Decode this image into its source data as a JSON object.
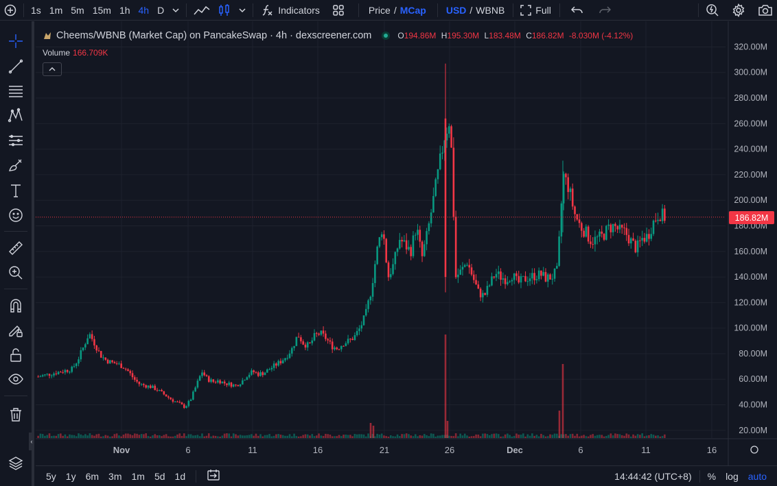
{
  "toolbar": {
    "intervals": [
      "1s",
      "1m",
      "5m",
      "15m",
      "1h",
      "4h",
      "D"
    ],
    "active_interval": "4h",
    "indicators_label": "Indicators",
    "price_label": "Price",
    "slash": "/",
    "mcap_label": "MCap",
    "usd_label": "USD",
    "wbnb_label": "WBNB",
    "full_label": "Full"
  },
  "legend": {
    "title": "Cheems/WBNB (Market Cap) on PancakeSwap · 4h · dexscreener.com",
    "open_key": "O",
    "open": "194.86M",
    "high_key": "H",
    "high": "195.30M",
    "low_key": "L",
    "low": "183.48M",
    "close_key": "C",
    "close": "186.82M",
    "change": "-8.030M (-4.12%)",
    "volume_label": "Volume",
    "volume_value": "166.709K"
  },
  "chart_data": {
    "type": "candlestick",
    "symbol": "Cheems/WBNB (Market Cap)",
    "interval": "4h",
    "y_ticks": [
      "320.00M",
      "300.00M",
      "280.00M",
      "260.00M",
      "240.00M",
      "220.00M",
      "200.00M",
      "180.00M",
      "160.00M",
      "140.00M",
      "120.00M",
      "100.00M",
      "80.00M",
      "60.00M",
      "40.00M",
      "20.00M"
    ],
    "ylim": [
      14,
      324
    ],
    "x_ticks": [
      "Nov",
      "6",
      "11",
      "16",
      "21",
      "26",
      "Dec",
      "6",
      "11",
      "16"
    ],
    "last_price": "186.82M",
    "close_series": [
      62,
      63,
      64,
      65,
      66,
      67,
      68,
      75,
      85,
      96,
      88,
      79,
      75,
      73,
      72,
      70,
      66,
      60,
      56,
      55,
      54,
      52,
      49,
      46,
      43,
      41,
      38,
      44,
      55,
      66,
      60,
      58,
      59,
      57,
      56,
      55,
      58,
      63,
      66,
      64,
      65,
      68,
      71,
      74,
      78,
      84,
      95,
      88,
      86,
      94,
      96,
      92,
      86,
      84,
      88,
      90,
      93,
      100,
      110,
      130,
      160,
      180,
      140,
      150,
      170,
      165,
      160,
      180,
      155,
      175,
      200,
      225,
      250,
      265,
      140,
      145,
      152,
      140,
      128,
      125,
      134,
      143,
      140,
      138,
      142,
      135,
      138,
      140,
      141,
      142,
      139,
      140,
      145,
      220,
      210,
      190,
      180,
      175,
      168,
      170,
      172,
      178,
      180,
      176,
      175,
      168,
      162,
      170,
      172,
      183,
      190,
      186.82
    ],
    "volume_peaks": [
      {
        "x": "25",
        "value": 151
      },
      {
        "x": "Dec 4",
        "value": 108
      }
    ]
  },
  "bottom": {
    "ranges": [
      "5y",
      "1y",
      "6m",
      "3m",
      "1m",
      "5d",
      "1d"
    ],
    "time": "14:44:42 (UTC+8)",
    "percent": "%",
    "log": "log",
    "auto": "auto"
  },
  "colors": {
    "up": "#089981",
    "down": "#f23645",
    "bg": "#131722",
    "grid": "#1e222d",
    "accent": "#2962ff"
  }
}
